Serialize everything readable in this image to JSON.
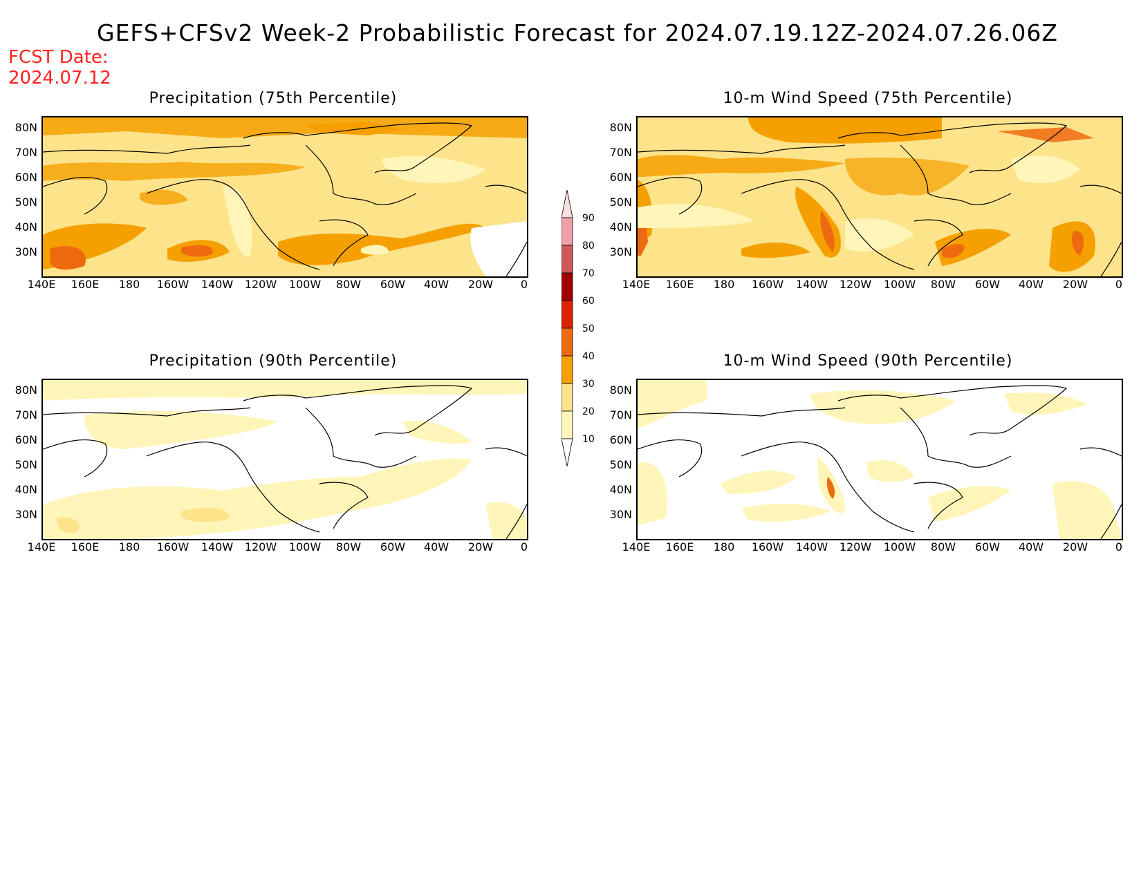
{
  "title": "GEFS+CFSv2 Week-2 Probabilistic Forecast for 2024.07.19.12Z-2024.07.26.06Z",
  "fcst_date": {
    "line1": "FCST Date:",
    "line2": "2024.07.12"
  },
  "panels": [
    {
      "title": "Precipitation (75th Percentile)"
    },
    {
      "title": "10-m Wind Speed (75th Percentile)"
    },
    {
      "title": "Precipitation (90th Percentile)"
    },
    {
      "title": "10-m Wind Speed (90th Percentile)"
    }
  ],
  "axes": {
    "lat_labels": [
      "80N",
      "70N",
      "60N",
      "50N",
      "40N",
      "30N"
    ],
    "lon_labels": [
      "140E",
      "160E",
      "180",
      "160W",
      "140W",
      "120W",
      "100W",
      "80W",
      "60W",
      "40W",
      "20W",
      "0"
    ]
  },
  "colorbar": {
    "levels": [
      "10",
      "20",
      "30",
      "40",
      "50",
      "60",
      "70",
      "80",
      "90"
    ],
    "colors": [
      "#fff5b8",
      "#fde38a",
      "#f5a000",
      "#ee6a10",
      "#dd2200",
      "#a00000",
      "#d05858",
      "#f2a0a8",
      "#fde0e2"
    ]
  }
}
